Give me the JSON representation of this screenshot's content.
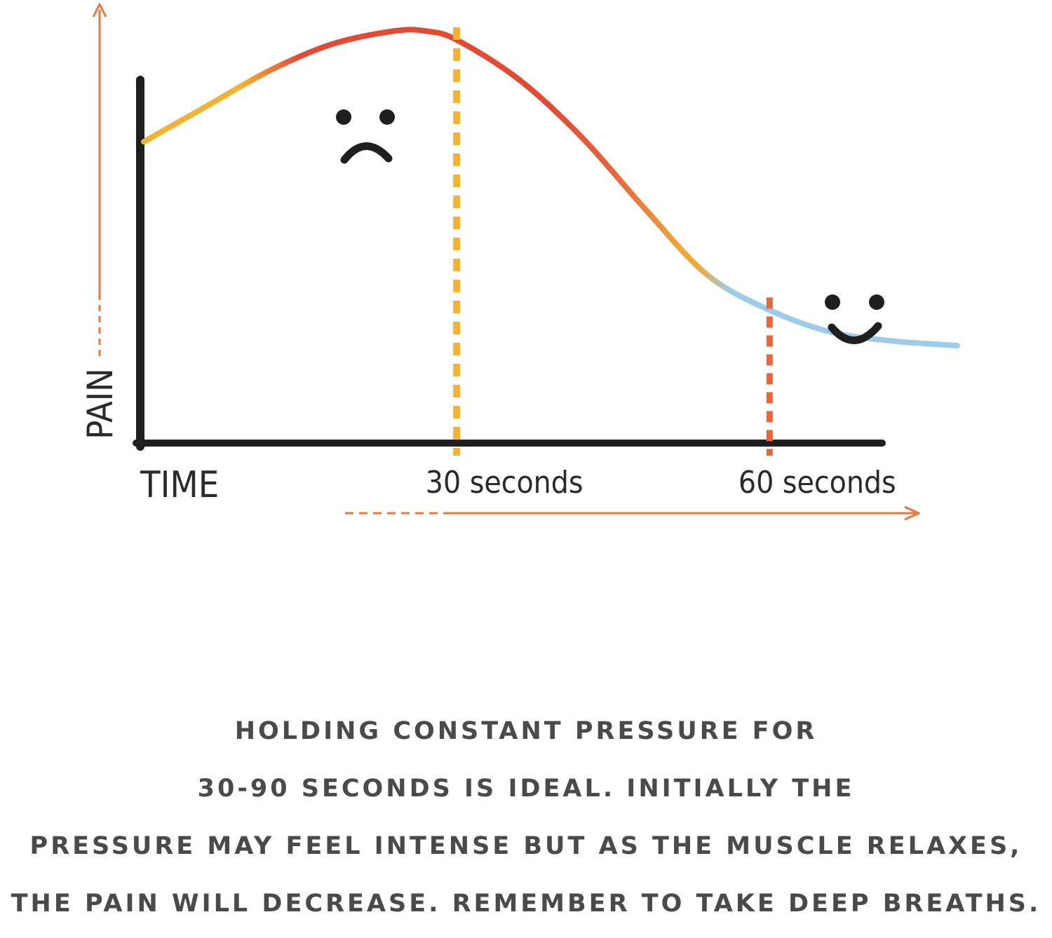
{
  "chart_data": {
    "type": "line",
    "title": "",
    "xlabel": "TIME",
    "ylabel": "PAIN",
    "x_tick_labels": [
      "30 seconds",
      "60 seconds"
    ],
    "x_ticks": [
      30,
      60
    ],
    "xlim": [
      0,
      78
    ],
    "ylim": [
      0,
      1
    ],
    "grid": false,
    "series": [
      {
        "x": [
          0,
          6,
          12,
          18,
          24,
          27,
          30,
          36,
          42,
          48,
          54,
          60,
          66,
          72,
          78
        ],
        "values": [
          0.68,
          0.76,
          0.84,
          0.9,
          0.93,
          0.93,
          0.91,
          0.82,
          0.69,
          0.53,
          0.38,
          0.3,
          0.25,
          0.23,
          0.22
        ],
        "colors": [
          "#f2b233",
          "#f2b233",
          "#e34a34",
          "#e34a34",
          "#e34a34",
          "#e34a34",
          "#e34a34",
          "#e8663a",
          "#f1a737",
          "#f1a737",
          "#9ccce9",
          "#9ccce9",
          "#9ccce9",
          "#9ccce9",
          "#9ccce9"
        ]
      }
    ],
    "markers": [
      {
        "x": 30,
        "color": "#f2b233",
        "style": "dashed"
      },
      {
        "x": 60,
        "color": "#e8663a",
        "style": "dashed"
      }
    ],
    "annotations": [
      {
        "face": "sad",
        "near_x": 22
      },
      {
        "face": "happy",
        "near_x": 71
      }
    ]
  },
  "caption": {
    "lines": [
      "HOLDING CONSTANT PRESSURE FOR",
      "30-90 SECONDS IS IDEAL. INITIALLY THE",
      "PRESSURE MAY FEEL INTENSE BUT AS THE MUSCLE RELAXES,",
      "THE PAIN WILL DECREASE. REMEMBER TO TAKE DEEP BREATHS."
    ]
  },
  "colors": {
    "axis": "#1f1f1f",
    "arrow": "#e8773f",
    "text": "#4a4a4a"
  }
}
